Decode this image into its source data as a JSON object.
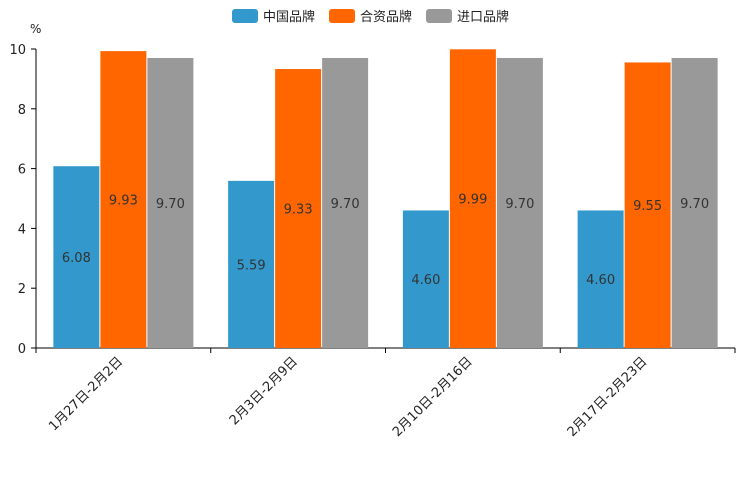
{
  "chart_data": {
    "type": "bar",
    "title": "",
    "y_unit": "%",
    "xlabel": "",
    "ylabel": "",
    "ylim": [
      0,
      10
    ],
    "yticks": [
      0,
      2,
      4,
      6,
      8,
      10
    ],
    "grid": false,
    "legend_position": "top-center",
    "categories": [
      "1月27日-2月2日",
      "2月3日-2月9日",
      "2月10日-2月16日",
      "2月17日-2月23日"
    ],
    "series": [
      {
        "name": "中国品牌",
        "color": "#3399cc",
        "values": [
          6.08,
          5.59,
          4.6,
          4.6
        ],
        "labels": [
          "6.08",
          "5.59",
          "4.60",
          "4.60"
        ]
      },
      {
        "name": "合资品牌",
        "color": "#ff6600",
        "values": [
          9.93,
          9.33,
          9.99,
          9.55
        ],
        "labels": [
          "9.93",
          "9.33",
          "9.99",
          "9.55"
        ]
      },
      {
        "name": "进口品牌",
        "color": "#999999",
        "values": [
          9.7,
          9.7,
          9.7,
          9.7
        ],
        "labels": [
          "9.70",
          "9.70",
          "9.70",
          "9.70"
        ]
      }
    ]
  }
}
